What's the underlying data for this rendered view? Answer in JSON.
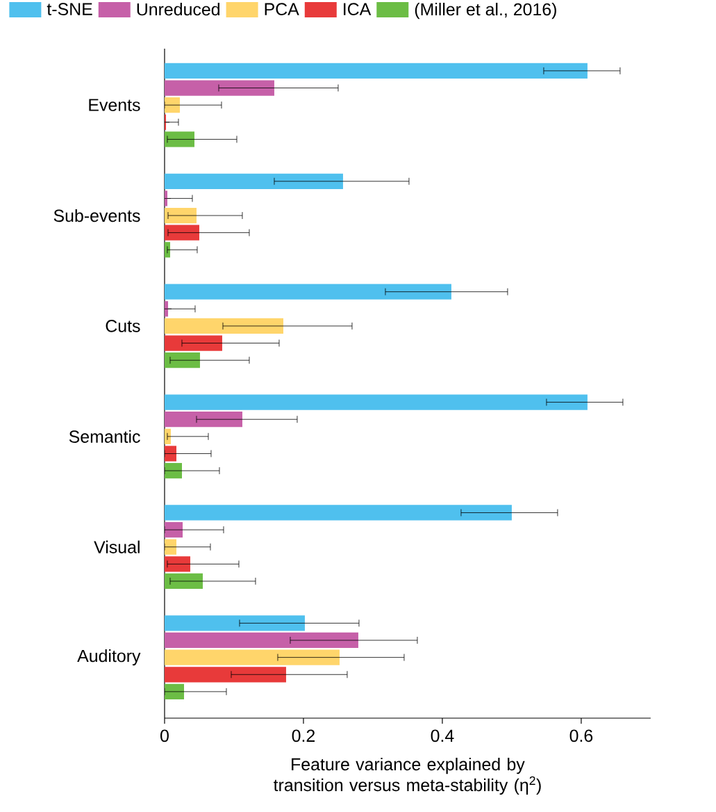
{
  "chart_data": {
    "type": "bar",
    "orientation": "horizontal",
    "legend": "top",
    "categories": [
      "Events",
      "Sub-events",
      "Cuts",
      "Semantic",
      "Visual",
      "Auditory"
    ],
    "xlabel": "Feature variance explained by transition versus meta-stability (η$^{2}$)",
    "xlim": [
      0,
      0.7
    ],
    "xticks": [
      0,
      0.2,
      0.4,
      0.6
    ],
    "series": [
      {
        "name": "t-SNE",
        "color": "#4fc0ee",
        "values": [
          0.609,
          0.257,
          0.413,
          0.609,
          0.5,
          0.202
        ],
        "errors": [
          [
            0.546,
            0.656
          ],
          [
            0.158,
            0.352
          ],
          [
            0.318,
            0.494
          ],
          [
            0.55,
            0.66
          ],
          [
            0.427,
            0.566
          ],
          [
            0.108,
            0.28
          ]
        ]
      },
      {
        "name": "Unreduced",
        "color": "#c660a8",
        "values": [
          0.158,
          0.004,
          0.005,
          0.112,
          0.026,
          0.279
        ],
        "errors": [
          [
            0.078,
            0.25
          ],
          [
            0.004,
            0.04
          ],
          [
            0.005,
            0.044
          ],
          [
            0.046,
            0.191
          ],
          [
            0,
            0.085
          ],
          [
            0.181,
            0.364
          ]
        ]
      },
      {
        "name": "PCA",
        "color": "#ffd56b",
        "values": [
          0.022,
          0.046,
          0.171,
          0.009,
          0.017,
          0.252
        ],
        "errors": [
          [
            0,
            0.082
          ],
          [
            0.005,
            0.112
          ],
          [
            0.084,
            0.27
          ],
          [
            0.004,
            0.063
          ],
          [
            0,
            0.066
          ],
          [
            0.163,
            0.345
          ]
        ]
      },
      {
        "name": "ICA",
        "color": "#e83a3a",
        "values": [
          0.002,
          0.05,
          0.083,
          0.017,
          0.037,
          0.175
        ],
        "errors": [
          [
            0.002,
            0.02
          ],
          [
            0.005,
            0.122
          ],
          [
            0.025,
            0.165
          ],
          [
            0,
            0.067
          ],
          [
            0.004,
            0.107
          ],
          [
            0.096,
            0.263
          ]
        ]
      },
      {
        "name": "(Miller et al., 2016)",
        "color": "#6cbd45",
        "values": [
          0.043,
          0.008,
          0.051,
          0.025,
          0.055,
          0.028
        ],
        "errors": [
          [
            0.004,
            0.104
          ],
          [
            0.004,
            0.047
          ],
          [
            0.008,
            0.122
          ],
          [
            0,
            0.079
          ],
          [
            0.008,
            0.131
          ],
          [
            0,
            0.089
          ]
        ]
      }
    ]
  }
}
